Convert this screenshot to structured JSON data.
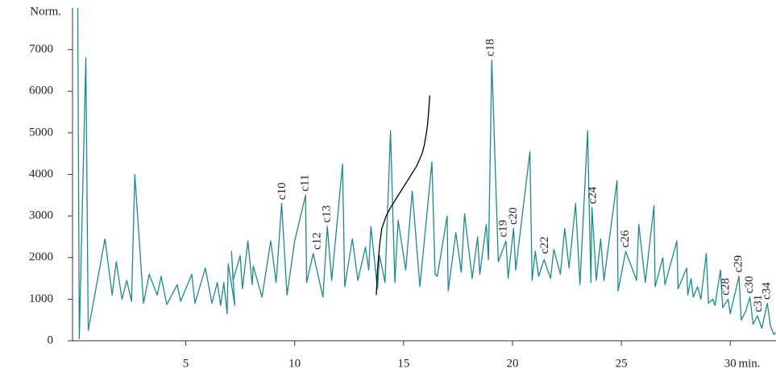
{
  "chart_data": {
    "type": "line",
    "ylabel": "Norm.",
    "xlabel": "min.",
    "xlim": [
      -0.2,
      32.1
    ],
    "ylim": [
      0,
      8000
    ],
    "xticks": [
      5,
      10,
      15,
      20,
      25,
      30
    ],
    "yticks": [
      0,
      1000,
      2000,
      3000,
      4000,
      5000,
      6000,
      7000
    ],
    "series": [
      {
        "color": "#1b8a8f",
        "x": [
          0.04,
          0.11,
          0.41,
          0.52,
          1.29,
          1.62,
          1.81,
          2.07,
          2.29,
          2.51,
          2.66,
          3.06,
          3.32,
          3.69,
          3.87,
          4.13,
          4.61,
          4.76,
          5.28,
          5.42,
          5.9,
          6.2,
          6.45,
          6.6,
          6.75,
          6.9,
          6.95,
          7.25,
          7.1,
          7.17,
          7.5,
          7.6,
          7.85,
          8.05,
          8.1,
          8.5,
          8.9,
          9.15,
          9.4,
          9.65,
          10.0,
          10.5,
          10.55,
          10.85,
          11.3,
          11.5,
          11.7,
          12.2,
          12.3,
          12.65,
          12.9,
          13.25,
          13.4,
          13.5,
          13.8,
          13.9,
          14.15,
          14.4,
          14.6,
          14.75,
          15.1,
          15.4,
          15.75,
          16.3,
          16.45,
          16.55,
          17.0,
          17.05,
          17.4,
          17.65,
          17.8,
          18.15,
          18.4,
          18.5,
          18.8,
          18.9,
          19.05,
          19.35,
          19.7,
          19.8,
          20.05,
          20.15,
          20.8,
          20.9,
          21.05,
          21.2,
          21.45,
          21.75,
          21.9,
          22.2,
          22.4,
          22.6,
          22.9,
          23.1,
          23.45,
          23.6,
          23.65,
          23.85,
          24.05,
          24.2,
          24.8,
          24.85,
          25.2,
          25.7,
          25.8,
          26.1,
          26.5,
          26.55,
          26.9,
          27.0,
          27.55,
          27.6,
          28.0,
          28.05,
          28.2,
          28.3,
          28.5,
          28.65,
          28.9,
          29.0,
          29.2,
          29.3,
          29.55,
          29.65,
          29.9,
          30.0,
          30.4,
          30.5,
          30.7,
          30.9,
          31.05,
          31.25,
          31.45,
          31.7,
          31.85,
          32.0,
          32.1
        ],
        "values": [
          8000,
          50,
          6800,
          250,
          2450,
          1100,
          1900,
          1000,
          1450,
          950,
          4000,
          900,
          1600,
          1100,
          1550,
          870,
          1350,
          950,
          1600,
          900,
          1750,
          900,
          1400,
          850,
          1400,
          650,
          1850,
          850,
          2150,
          1450,
          2050,
          1250,
          2400,
          1350,
          1800,
          1050,
          2400,
          1400,
          3300,
          1100,
          2400,
          3500,
          1400,
          2100,
          1050,
          2750,
          1450,
          4250,
          1300,
          2450,
          1450,
          2250,
          1700,
          2750,
          1250,
          2050,
          1400,
          5050,
          1400,
          2900,
          1700,
          3600,
          1300,
          4300,
          1600,
          1550,
          3000,
          1200,
          2600,
          1650,
          3050,
          1500,
          2500,
          1600,
          2800,
          1950,
          6750,
          1900,
          2400,
          1500,
          2700,
          1700,
          4550,
          1450,
          2150,
          1550,
          1950,
          1500,
          2200,
          1600,
          2700,
          1750,
          3300,
          1350,
          5050,
          1400,
          3200,
          1450,
          2450,
          1450,
          3850,
          1200,
          2150,
          1450,
          2800,
          1400,
          3250,
          1300,
          2000,
          1350,
          2400,
          1250,
          1750,
          1100,
          1500,
          1050,
          1300,
          1000,
          2100,
          900,
          1000,
          850,
          1700,
          800,
          1000,
          650,
          1550,
          500,
          700,
          1050,
          400,
          600,
          300,
          900,
          350,
          150,
          200
        ]
      },
      {
        "color": "#000000",
        "x": [
          13.75,
          13.8,
          13.9,
          14.0,
          14.2,
          14.4,
          14.7,
          15.0,
          15.3,
          15.6,
          15.85,
          15.95,
          16.05,
          16.1,
          16.15,
          16.2
        ],
        "values": [
          1100,
          1700,
          2300,
          2700,
          3000,
          3200,
          3450,
          3700,
          3950,
          4200,
          4500,
          4700,
          5000,
          5200,
          5500,
          5900
        ]
      }
    ],
    "annotations": [
      {
        "text": "c10",
        "x": 9.45,
        "y": 3350
      },
      {
        "text": "c11",
        "x": 10.5,
        "y": 3550
      },
      {
        "text": "c12",
        "x": 11.05,
        "y": 2150
      },
      {
        "text": "c13",
        "x": 11.5,
        "y": 2800
      },
      {
        "text": "c18",
        "x": 19.0,
        "y": 6800
      },
      {
        "text": "c19",
        "x": 19.6,
        "y": 2450
      },
      {
        "text": "c20",
        "x": 20.05,
        "y": 2750
      },
      {
        "text": "c22",
        "x": 21.5,
        "y": 2050
      },
      {
        "text": "c24",
        "x": 23.7,
        "y": 3250
      },
      {
        "text": "c26",
        "x": 25.2,
        "y": 2200
      },
      {
        "text": "c28",
        "x": 29.8,
        "y": 1050
      },
      {
        "text": "c29",
        "x": 30.4,
        "y": 1600
      },
      {
        "text": "c30",
        "x": 30.9,
        "y": 1100
      },
      {
        "text": "c31",
        "x": 31.3,
        "y": 650
      },
      {
        "text": "c34",
        "x": 31.7,
        "y": 950
      }
    ]
  }
}
